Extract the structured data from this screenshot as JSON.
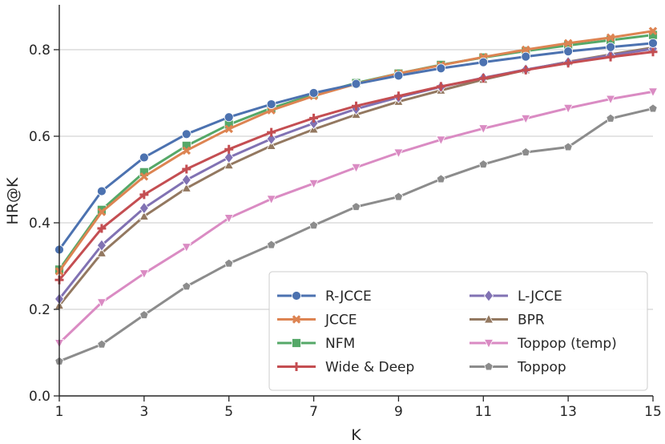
{
  "chart_data": {
    "type": "line",
    "title": "",
    "xlabel": "K",
    "ylabel": "HR@K",
    "xlim": [
      1,
      15
    ],
    "ylim": [
      0,
      0.9
    ],
    "xticks": [
      "1",
      "3",
      "5",
      "7",
      "9",
      "11",
      "13",
      "15"
    ],
    "yticks": [
      "0.0",
      "0.2",
      "0.4",
      "0.6",
      "0.8"
    ],
    "grid": "horizontal",
    "legend_position": "lower-right",
    "x": [
      1,
      2,
      3,
      4,
      5,
      6,
      7,
      8,
      9,
      10,
      11,
      12,
      13,
      14,
      15
    ],
    "series": [
      {
        "name": "R-JCCE",
        "color": "#4c72b0",
        "marker": "circle",
        "values": [
          0.338,
          0.473,
          0.551,
          0.605,
          0.644,
          0.674,
          0.7,
          0.721,
          0.74,
          0.757,
          0.771,
          0.784,
          0.796,
          0.806,
          0.815
        ]
      },
      {
        "name": "JCCE",
        "color": "#dd8452",
        "marker": "x",
        "values": [
          0.288,
          0.425,
          0.507,
          0.567,
          0.617,
          0.66,
          0.693,
          0.721,
          0.745,
          0.764,
          0.783,
          0.8,
          0.815,
          0.828,
          0.843
        ]
      },
      {
        "name": "NFM",
        "color": "#55a868",
        "marker": "square",
        "values": [
          0.292,
          0.43,
          0.517,
          0.578,
          0.627,
          0.665,
          0.696,
          0.723,
          0.745,
          0.765,
          0.782,
          0.797,
          0.81,
          0.822,
          0.834
        ]
      },
      {
        "name": "Wide & Deep",
        "color": "#c44e52",
        "marker": "plus",
        "values": [
          0.268,
          0.387,
          0.465,
          0.524,
          0.57,
          0.609,
          0.642,
          0.67,
          0.693,
          0.715,
          0.734,
          0.753,
          0.769,
          0.783,
          0.795
        ]
      },
      {
        "name": "L-JCCE",
        "color": "#8172b3",
        "marker": "diamond",
        "values": [
          0.224,
          0.348,
          0.434,
          0.499,
          0.551,
          0.594,
          0.63,
          0.663,
          0.69,
          0.714,
          0.735,
          0.754,
          0.771,
          0.787,
          0.802
        ]
      },
      {
        "name": "BPR",
        "color": "#937860",
        "marker": "triangle-up",
        "values": [
          0.209,
          0.33,
          0.415,
          0.48,
          0.533,
          0.578,
          0.616,
          0.65,
          0.68,
          0.706,
          0.731,
          0.753,
          0.772,
          0.789,
          0.805
        ]
      },
      {
        "name": "Toppop (temp)",
        "color": "#da8bc3",
        "marker": "triangle-down",
        "values": [
          0.122,
          0.216,
          0.283,
          0.344,
          0.411,
          0.455,
          0.491,
          0.528,
          0.562,
          0.592,
          0.618,
          0.641,
          0.665,
          0.686,
          0.703
        ]
      },
      {
        "name": "Toppop",
        "color": "#8c8c8c",
        "marker": "pentagon",
        "values": [
          0.08,
          0.119,
          0.187,
          0.253,
          0.306,
          0.349,
          0.394,
          0.437,
          0.46,
          0.501,
          0.535,
          0.563,
          0.575,
          0.641,
          0.664
        ]
      }
    ]
  }
}
